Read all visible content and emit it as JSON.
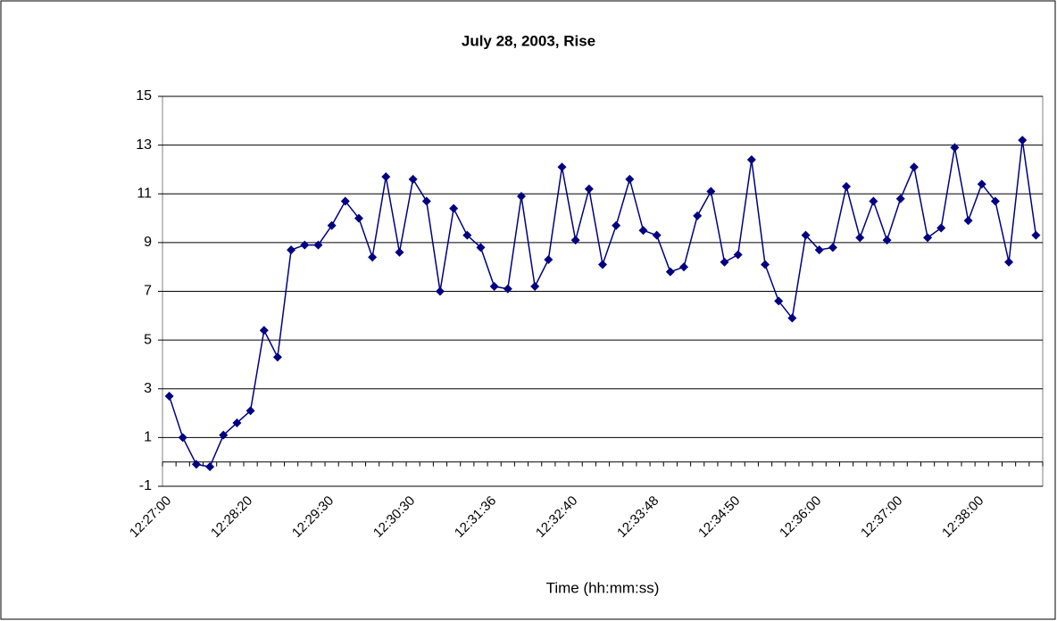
{
  "chart_data": {
    "type": "line",
    "title": "July 28, 2003, Rise",
    "x_label": "Time (hh:mm:ss)",
    "categories": [
      "12:27:00",
      null,
      null,
      null,
      null,
      null,
      "12:28:20",
      null,
      null,
      null,
      null,
      null,
      "12:29:30",
      null,
      null,
      null,
      null,
      null,
      "12:30:30",
      null,
      null,
      null,
      null,
      null,
      "12:31:36",
      null,
      null,
      null,
      null,
      null,
      "12:32:40",
      null,
      null,
      null,
      null,
      null,
      "12:33:48",
      null,
      null,
      null,
      null,
      null,
      "12:34:50",
      null,
      null,
      null,
      null,
      null,
      "12:36:00",
      null,
      null,
      null,
      null,
      null,
      "12:37:00",
      null,
      null,
      null,
      null,
      null,
      "12:38:00",
      null,
      null,
      null,
      null
    ],
    "series": [
      {
        "name": "Rise",
        "color": "#000080",
        "values": [
          2.7,
          1.0,
          -0.1,
          -0.2,
          1.1,
          1.6,
          2.1,
          5.4,
          4.3,
          8.7,
          8.9,
          8.9,
          9.7,
          10.7,
          10.0,
          8.4,
          11.7,
          8.6,
          11.6,
          10.7,
          7.0,
          10.4,
          9.3,
          8.8,
          7.2,
          7.1,
          10.9,
          7.2,
          8.3,
          12.1,
          9.1,
          11.2,
          8.1,
          9.7,
          11.6,
          9.5,
          9.3,
          7.8,
          8.0,
          10.1,
          11.1,
          8.2,
          8.5,
          12.4,
          8.1,
          6.6,
          5.9,
          9.3,
          8.7,
          8.8,
          11.3,
          9.2,
          10.7,
          9.1,
          10.8,
          12.1,
          9.2,
          9.6,
          12.9,
          9.9,
          11.4,
          10.7,
          8.2,
          13.2,
          9.3
        ]
      }
    ],
    "ylim": [
      -1,
      15
    ],
    "yticks": [
      -1,
      1,
      3,
      5,
      7,
      9,
      11,
      13,
      15
    ],
    "grid": true
  }
}
